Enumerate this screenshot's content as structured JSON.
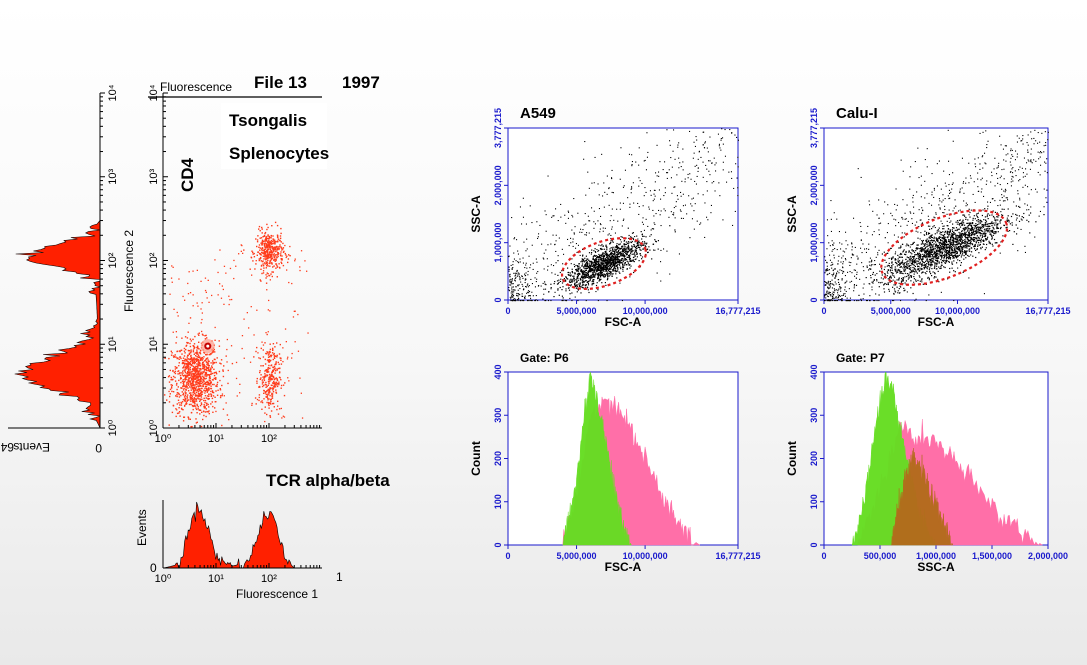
{
  "left_figure": {
    "header_label": "Fluorescence",
    "file_label": "File 13",
    "year": "1997",
    "author": "Tsongalis",
    "sample": "Splenocytes",
    "y_marker": "CD4",
    "x_marker": "TCR alpha/beta",
    "ylabel": "Fluorescence 2",
    "xlabel": "Fluorescence 1",
    "hist_y_label": "Events",
    "hist_y_max": "64",
    "hist_left_zero": "0",
    "hist_bottom_zero": "0",
    "hist_bottom_one": "1",
    "colors": {
      "fill": "#ff2000",
      "dot": "#ff3b1a"
    }
  },
  "chart_data": [
    {
      "type": "scatter",
      "title": "",
      "xlabel": "Fluorescence 1",
      "ylabel": "Fluorescence 2",
      "xscale": "log",
      "yscale": "log",
      "xlim": [
        1,
        1000
      ],
      "ylim": [
        1,
        10000
      ],
      "xticks": [
        "10⁰",
        "10¹",
        "10²"
      ],
      "yticks": [
        "10⁰",
        "10¹",
        "10²",
        "10³",
        "10⁴"
      ],
      "clusters": [
        {
          "center": [
            4,
            4
          ],
          "approx_events": 1800
        },
        {
          "center": [
            100,
            130
          ],
          "approx_events": 700
        },
        {
          "center": [
            100,
            4
          ],
          "approx_events": 500
        }
      ]
    },
    {
      "type": "area",
      "title": "",
      "xlabel": "Fluorescence 1",
      "ylabel": "Events",
      "xscale": "log",
      "x": [
        1,
        2,
        3,
        4,
        5,
        6,
        8,
        10,
        20,
        40,
        60,
        80,
        100,
        130,
        160,
        200,
        300
      ],
      "y": [
        0,
        4,
        36,
        58,
        60,
        52,
        30,
        10,
        2,
        6,
        30,
        52,
        56,
        48,
        28,
        8,
        0
      ]
    },
    {
      "type": "area",
      "title": "",
      "xlabel": "Fluorescence 2",
      "ylabel": "Events",
      "xscale": "log",
      "x": [
        1,
        2,
        3,
        4,
        5,
        6,
        8,
        10,
        20,
        60,
        80,
        100,
        130,
        160,
        200,
        300
      ],
      "y": [
        0,
        12,
        40,
        58,
        60,
        50,
        30,
        12,
        2,
        4,
        28,
        54,
        50,
        30,
        8,
        0
      ]
    },
    {
      "type": "scatter",
      "title": "A549",
      "xlabel": "FSC-A",
      "ylabel": "SSC-A",
      "xlim": [
        0,
        16777215
      ],
      "ylim": [
        0,
        3777215
      ],
      "xticks": [
        "0",
        "5,000,000",
        "10,000,000",
        "16,777,215"
      ],
      "yticks": [
        "0",
        "1,000,000",
        "2,000,000",
        "3,777,215"
      ],
      "gate": {
        "center": [
          7000000,
          800000
        ],
        "rx": 3200000,
        "ry": 480000
      }
    },
    {
      "type": "scatter",
      "title": "Calu-I",
      "xlabel": "FSC-A",
      "ylabel": "SSC-A",
      "xlim": [
        0,
        16777215
      ],
      "ylim": [
        0,
        3777215
      ],
      "xticks": [
        "0",
        "5,000,000",
        "10,000,000",
        "16,777,215"
      ],
      "yticks": [
        "0",
        "1,000,000",
        "2,000,000",
        "3,777,215"
      ],
      "gate": {
        "center": [
          9000000,
          1150000
        ],
        "rx": 5000000,
        "ry": 650000
      }
    },
    {
      "type": "area",
      "title": "Gate: P6",
      "xlabel": "FSC-A",
      "ylabel": "Count",
      "xlim": [
        0,
        16777215
      ],
      "ylim": [
        0,
        400
      ],
      "xticks": [
        "0",
        "5,000,000",
        "10,000,000",
        "16,777,215"
      ],
      "yticks": [
        "0",
        "100",
        "200",
        "300",
        "400"
      ],
      "series": [
        {
          "color": "#ff6fa8",
          "x": [
            4000000,
            5000000,
            6000000,
            7000000,
            8000000,
            9000000,
            10000000,
            11000000,
            12000000,
            13000000,
            14000000
          ],
          "y": [
            0,
            110,
            290,
            345,
            320,
            270,
            200,
            130,
            70,
            20,
            0
          ]
        },
        {
          "color": "#66dd22",
          "x": [
            4000000,
            5000000,
            5500000,
            6000000,
            6500000,
            7000000,
            7500000,
            8000000,
            8500000,
            9000000
          ],
          "y": [
            0,
            150,
            280,
            395,
            340,
            260,
            180,
            90,
            30,
            0
          ]
        }
      ]
    },
    {
      "type": "area",
      "title": "Gate: P7",
      "xlabel": "SSC-A",
      "ylabel": "Count",
      "xlim": [
        0,
        2000000
      ],
      "ylim": [
        0,
        400
      ],
      "xticks": [
        "0",
        "500,000",
        "1,000,000",
        "1,500,000",
        "2,000,000"
      ],
      "yticks": [
        "0",
        "100",
        "200",
        "300",
        "400"
      ],
      "series": [
        {
          "color": "#ff6fa8",
          "x": [
            300000,
            500000,
            700000,
            800000,
            900000,
            1000000,
            1200000,
            1400000,
            1600000,
            1800000,
            1950000
          ],
          "y": [
            0,
            130,
            280,
            245,
            250,
            235,
            185,
            120,
            65,
            25,
            0
          ]
        },
        {
          "color": "#66dd22",
          "x": [
            250000,
            350000,
            450000,
            550000,
            620000,
            700000,
            800000,
            900000,
            1000000
          ],
          "y": [
            0,
            80,
            260,
            390,
            360,
            240,
            120,
            40,
            0
          ]
        },
        {
          "color": "#b36b1c",
          "x": [
            600000,
            700000,
            800000,
            880000,
            950000,
            1050000,
            1150000
          ],
          "y": [
            0,
            130,
            200,
            170,
            120,
            60,
            0
          ]
        }
      ]
    }
  ]
}
